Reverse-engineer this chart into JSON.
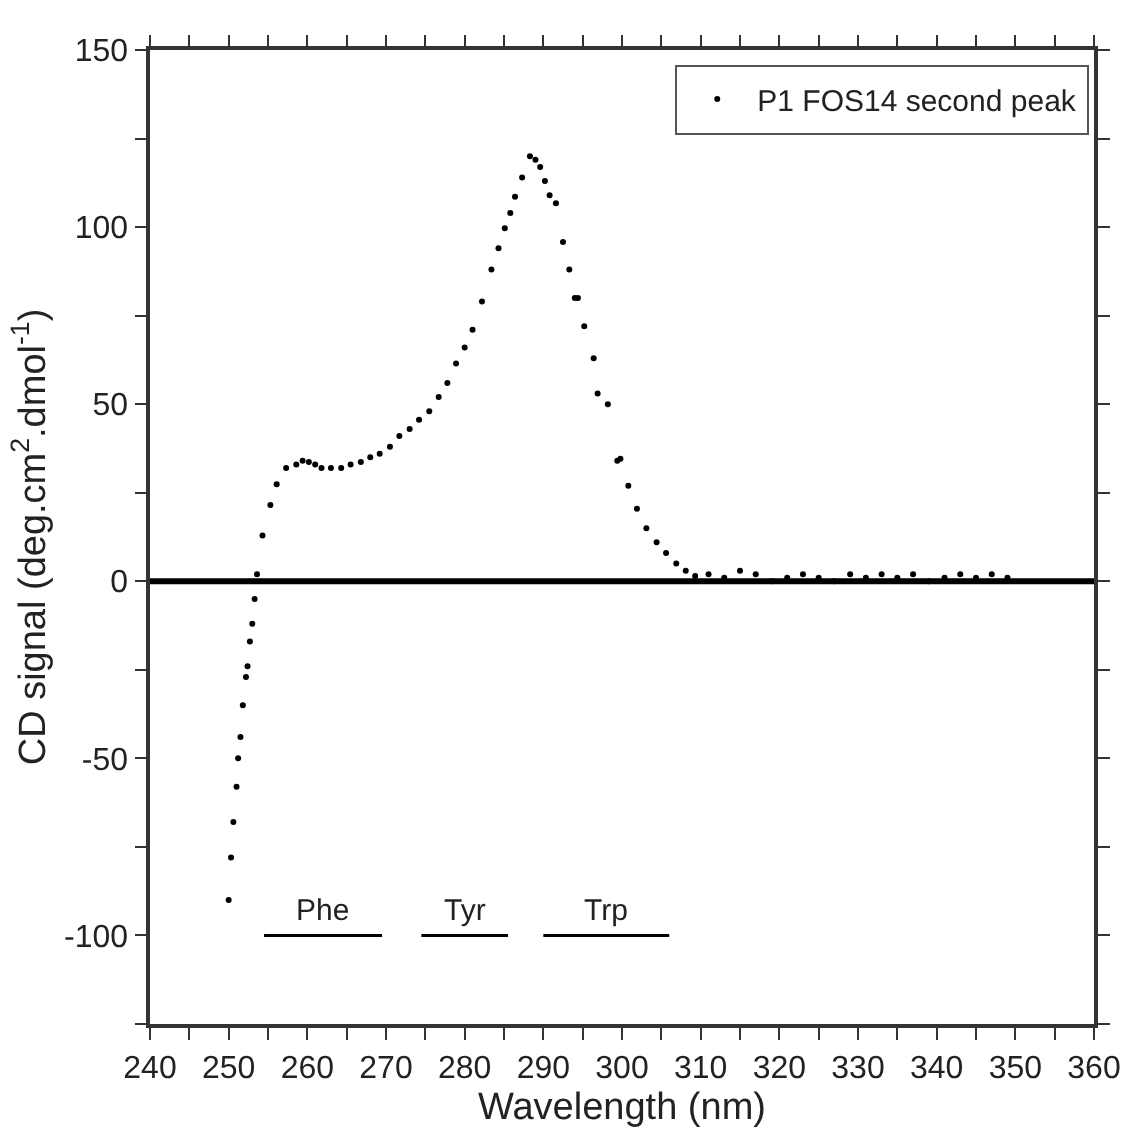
{
  "chart_data": {
    "type": "scatter",
    "xlabel": "Wavelength (nm)",
    "ylabel": "CD signal (deg.cm$^{2}$.dmol$^{-1}$)",
    "xlim": [
      240,
      360
    ],
    "ylim": [
      -125,
      150
    ],
    "xticks": [
      240,
      {
        "value": 245,
        "label": null
      },
      250,
      {
        "value": 255,
        "label": null
      },
      260,
      {
        "value": 265,
        "label": null
      },
      270,
      {
        "value": 275,
        "label": null
      },
      280,
      {
        "value": 285,
        "label": null
      },
      290,
      {
        "value": 295,
        "label": null
      },
      300,
      {
        "value": 305,
        "label": null
      },
      310,
      {
        "value": 315,
        "label": null
      },
      320,
      {
        "value": 325,
        "label": null
      },
      330,
      {
        "value": 335,
        "label": null
      },
      340,
      {
        "value": 345,
        "label": null
      },
      350,
      {
        "value": 355,
        "label": null
      },
      360
    ],
    "yticks": [
      {
        "value": -125,
        "label": null
      },
      -100,
      {
        "value": -75,
        "label": null
      },
      -50,
      {
        "value": -25,
        "label": null
      },
      0,
      {
        "value": 25,
        "label": null
      },
      50,
      {
        "value": 75,
        "label": null
      },
      100,
      {
        "value": 125,
        "label": null
      },
      150
    ],
    "legend": "top right",
    "ref_lines": [
      {
        "axis": "y",
        "value": 0,
        "color": "#000000"
      }
    ],
    "series": [
      {
        "name": "P1 FOS14 second peak",
        "color": "#000000",
        "marker": "circle",
        "x": [
          250,
          250.3,
          250.6,
          251,
          251.2,
          251.5,
          251.8,
          252.2,
          252.4,
          252.7,
          253,
          253.3,
          253.6,
          254.3,
          255.3,
          256.1,
          257.3,
          258.6,
          259.4,
          260.2,
          261,
          261.8,
          263,
          264.3,
          265.5,
          266.8,
          268,
          269.2,
          270.5,
          271.7,
          273,
          274.2,
          275.5,
          276.7,
          277.8,
          278.9,
          280,
          281,
          282.2,
          283.4,
          284.3,
          285.1,
          285.8,
          286.4,
          287.3,
          288.3,
          289,
          289.6,
          290.2,
          290.8,
          291.6,
          292.5,
          293.3,
          294,
          294.4,
          295.2,
          296.4,
          296.9,
          298.2,
          299.4,
          299.8,
          300.8,
          301.9,
          303.1,
          304.4,
          305.6,
          306.9,
          308.1,
          309.3,
          311,
          313,
          315,
          317,
          319,
          321,
          323,
          325,
          327,
          329,
          331,
          333,
          335,
          337,
          339,
          341,
          343,
          345,
          347,
          349
        ],
        "values": [
          -90,
          -78,
          -68,
          -58,
          -50,
          -44,
          -35,
          -27,
          -24,
          -17,
          -12,
          -5,
          2,
          12.9,
          21.5,
          27.4,
          32,
          33,
          34,
          33.7,
          33,
          32,
          32,
          32,
          33,
          33.7,
          35,
          36,
          38,
          41,
          43,
          45.6,
          48,
          52,
          56,
          61.5,
          66,
          71,
          79,
          88,
          94,
          99.7,
          104,
          108.6,
          114,
          120,
          119,
          117,
          113,
          109,
          106.7,
          95.8,
          88,
          80,
          80,
          72,
          63,
          53,
          50,
          34,
          34.6,
          27,
          20.5,
          15,
          11,
          8,
          5,
          3,
          1.5,
          2,
          1,
          3,
          2,
          0,
          1,
          2,
          1,
          0,
          2,
          1,
          2,
          1,
          2,
          0,
          1,
          2,
          1,
          2,
          1
        ]
      },
      {
        "type": "line",
        "name": "Phe",
        "color": "#000000",
        "x": [
          254.5,
          269.5
        ],
        "values": [
          -100,
          -100
        ]
      },
      {
        "type": "line",
        "name": "Tyr",
        "color": "#000000",
        "x": [
          274.5,
          285.5
        ],
        "values": [
          -100,
          -100
        ]
      },
      {
        "type": "line",
        "name": "Trp",
        "color": "#000000",
        "x": [
          290,
          306
        ],
        "values": [
          -100,
          -100
        ]
      }
    ]
  }
}
